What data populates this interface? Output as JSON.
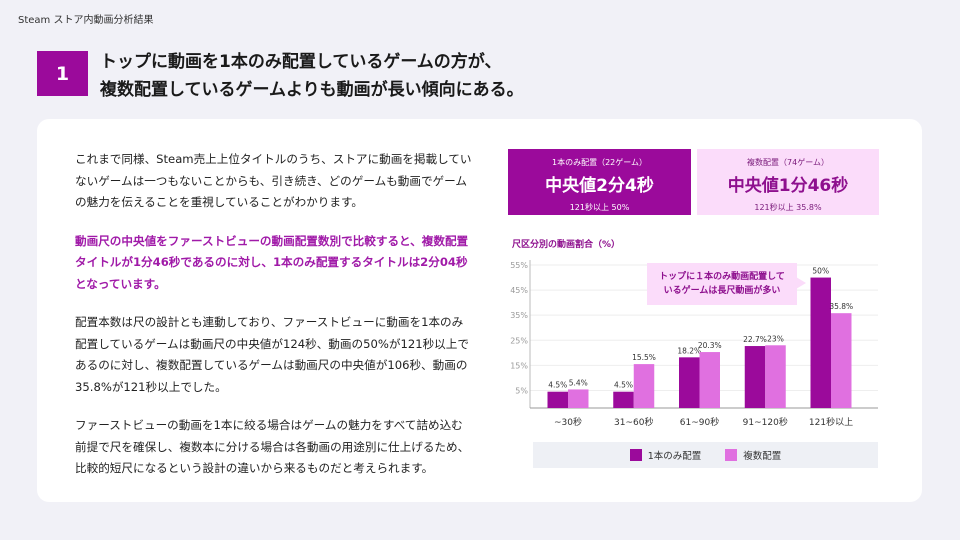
{
  "header": "Steam ストア内動画分析結果",
  "section_number": "1",
  "title_lines": [
    "トップに動画を1本のみ配置しているゲームの方が、",
    "複数配置しているゲームよりも動画が長い傾向にある。"
  ],
  "paragraphs": [
    {
      "lines": [
        "これまで同様、Steam売上上位タイトルのうち、ストアに動画を掲載してい",
        "ないゲームは一つもないことからも、引き続き、どのゲームも動画でゲーム",
        "の魅力を伝えることを重視していることがわかります。"
      ]
    },
    {
      "lines": [
        "動画尺の中央値をファーストビューの動画配置数別で比較すると、複数配置",
        "タイトルが1分46秒であるのに対し、1本のみ配置するタイトルは2分04秒",
        "となっています。"
      ]
    },
    {
      "lines": [
        "配置本数は尺の設計とも連動しており、ファーストビューに動画を1本のみ",
        "配置しているゲームは動画尺の中央値が124秒、動画の50%が121秒以上で",
        "あるのに対し、複数配置しているゲームは動画尺の中央値が106秒、動画の",
        "35.8%が121秒以上でした。"
      ]
    },
    {
      "lines": [
        "ファーストビューの動画を1本に絞る場合はゲームの魅力をすべて詰め込む",
        "前提で尺を確保し、複数本に分ける場合は各動画の用途別に仕上げるため、",
        "比較的短尺になるという設計の違いから来るものだと考えられます。"
      ]
    }
  ],
  "kpis": [
    {
      "label": "1本のみ配置（22ゲーム）",
      "value": "中央値2分4秒",
      "sub": "121秒以上 50%"
    },
    {
      "label": "複数配置（74ゲーム）",
      "value": "中央値1分46秒",
      "sub": "121秒以上 35.8%"
    }
  ],
  "chart_data": {
    "type": "bar",
    "title": "尺区分別の動画割合（%）",
    "categories": [
      "~30秒",
      "31~60秒",
      "61~90秒",
      "91~120秒",
      "121秒以上"
    ],
    "series": [
      {
        "name": "1本のみ配置",
        "color": "#9b0a9b",
        "values": [
          4.5,
          4.5,
          18.2,
          22.7,
          50
        ],
        "labels": [
          "4.5%",
          "4.5%",
          "18.2%",
          "22.7%",
          "50%"
        ]
      },
      {
        "name": "複数配置",
        "color": "#e070e0",
        "values": [
          5.4,
          15.5,
          20.3,
          23,
          35.8
        ],
        "labels": [
          "5.4%",
          "15.5%",
          "20.3%",
          "23%",
          "35.8%"
        ]
      }
    ],
    "yticks": [
      "55%",
      "45%",
      "35%",
      "25%",
      "15%",
      "5%"
    ],
    "ytick_values": [
      55,
      45,
      35,
      25,
      15,
      5
    ],
    "ylim": [
      -2,
      57
    ],
    "grid": true,
    "legend": "bottom",
    "annotation_lines": [
      "トップに１本のみ動画配置して",
      "いるゲームは長尺動画が多い"
    ]
  }
}
